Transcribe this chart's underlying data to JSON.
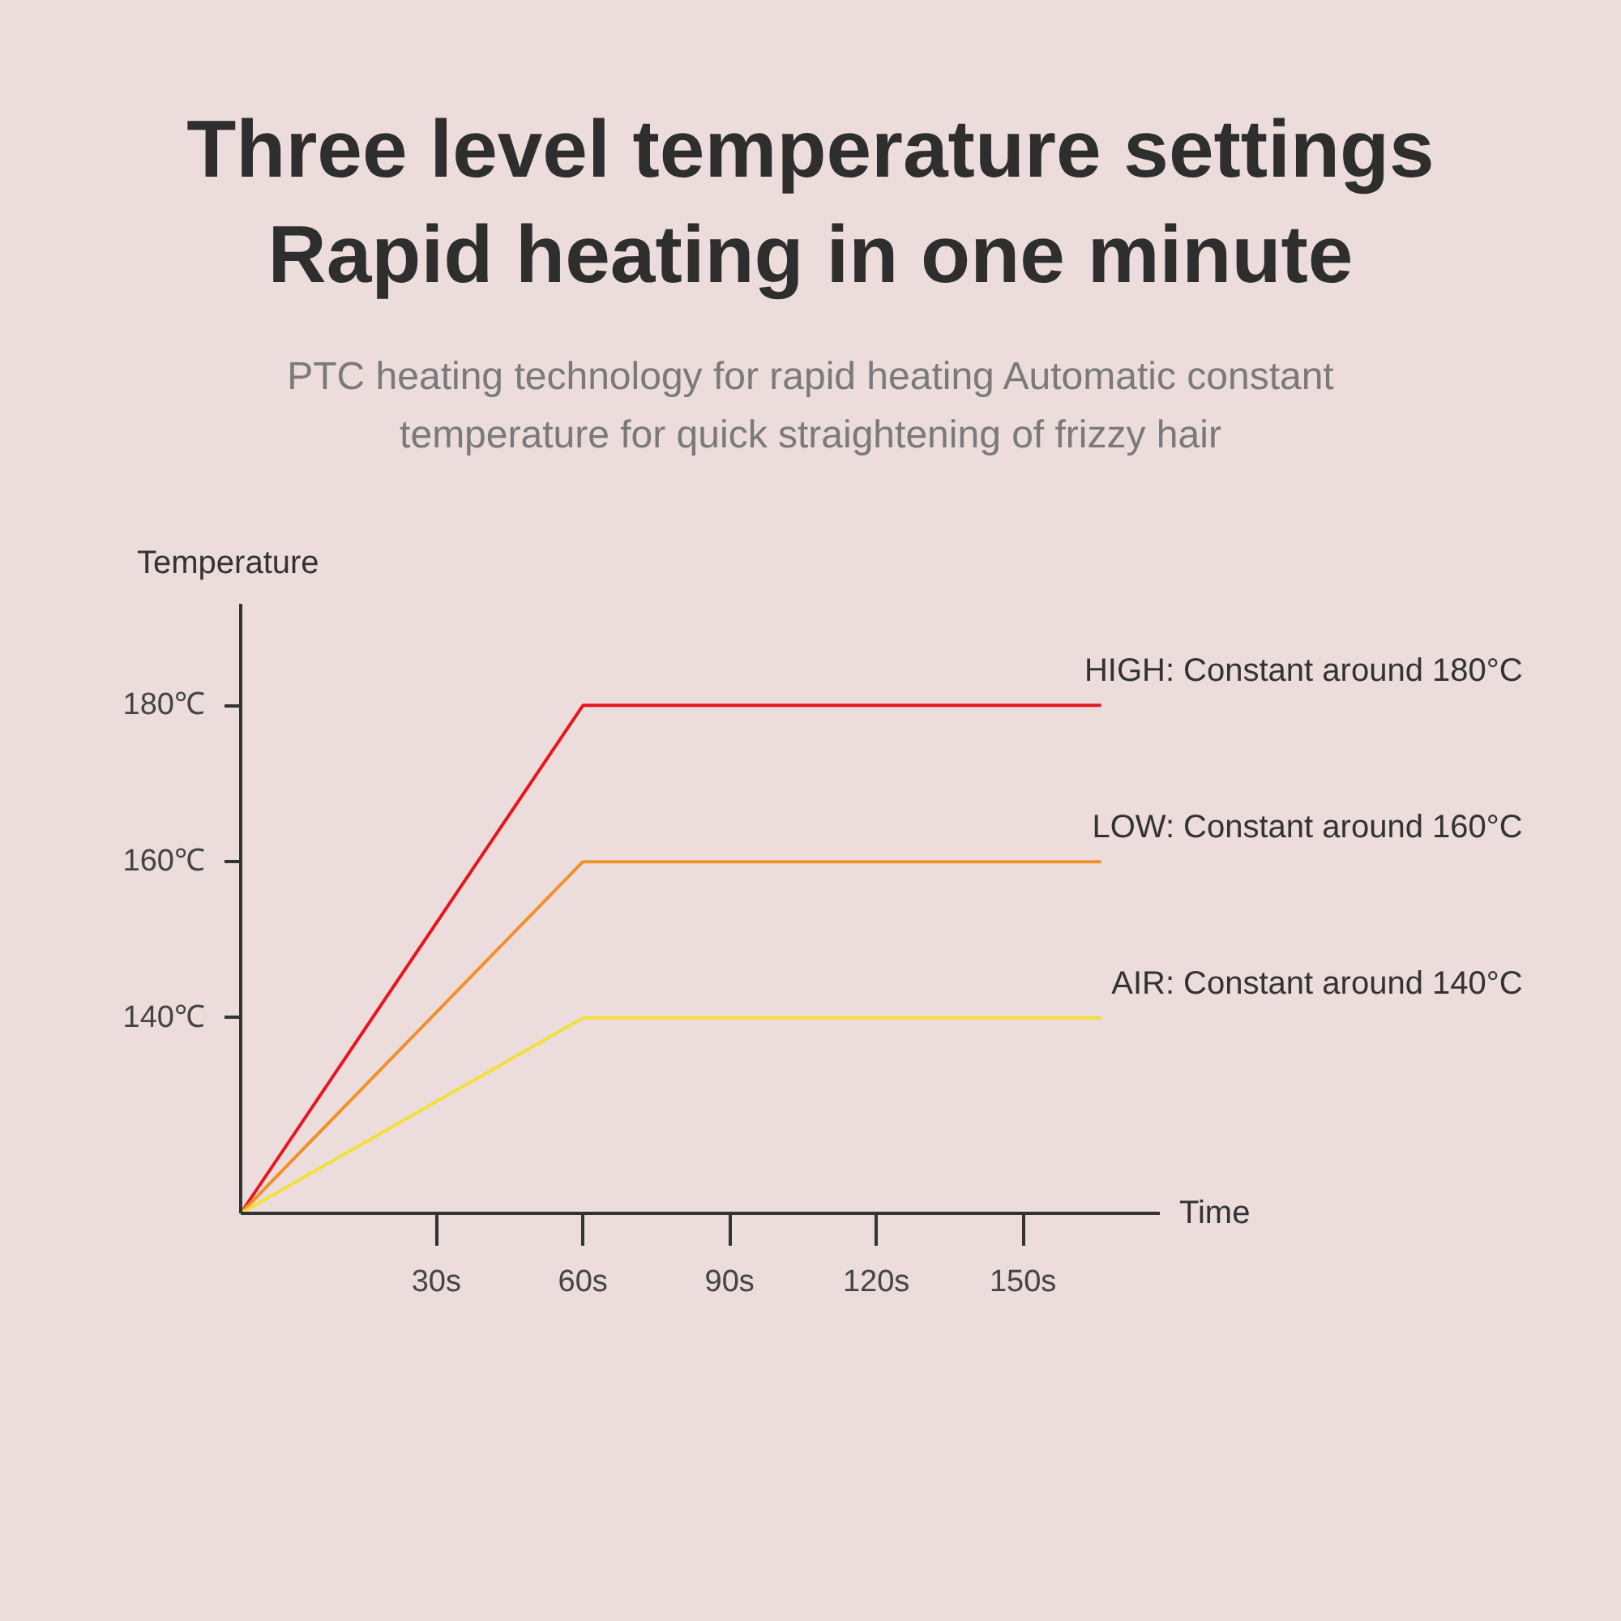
{
  "chart_data": {
    "type": "line",
    "title": "Three level temperature settings Rapid heating in one minute",
    "subtitle": "PTC heating technology for rapid heating Automatic constant temperature for quick straightening of frizzy hair",
    "xlabel": "Time",
    "ylabel": "Temperature",
    "xlim": [
      -10,
      178
    ],
    "xticks": [
      {
        "value": 30,
        "label": "30s"
      },
      {
        "value": 60,
        "label": "60s"
      },
      {
        "value": 90,
        "label": "90s"
      },
      {
        "value": 120,
        "label": "120s"
      },
      {
        "value": 150,
        "label": "150s"
      }
    ],
    "ylim": [
      115,
      193
    ],
    "yticks": [
      {
        "value": 140,
        "label": "140℃"
      },
      {
        "value": 160,
        "label": "160℃"
      },
      {
        "value": 180,
        "label": "180℃"
      }
    ],
    "x": [
      -10,
      60,
      166
    ],
    "series": [
      {
        "name": "HIGH: Constant around 180°C",
        "color": "#e8141e",
        "values": [
          115,
          180,
          180
        ]
      },
      {
        "name": "LOW: Constant around 160°C",
        "color": "#f0922a",
        "values": [
          115,
          160,
          160
        ]
      },
      {
        "name": "AIR: Constant around 140°C",
        "color": "#f2e03a",
        "values": [
          115,
          140,
          140
        ]
      }
    ],
    "grid": false,
    "marker": "none",
    "line_style": "solid"
  }
}
